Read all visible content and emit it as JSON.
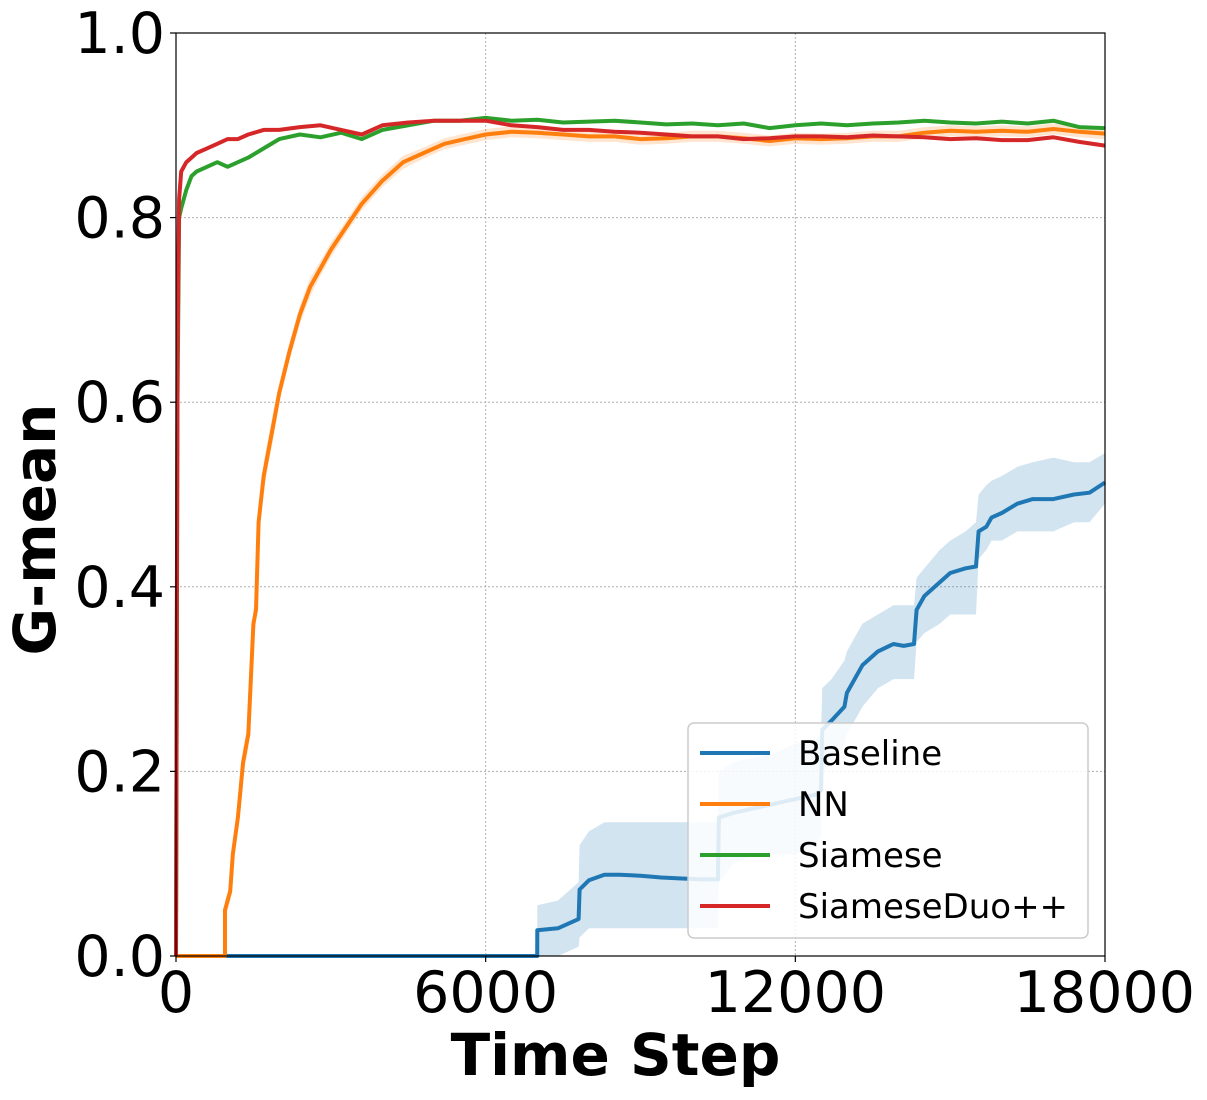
{
  "chart_data": {
    "type": "line",
    "xlabel": "Time Step",
    "ylabel": "G-mean",
    "xlim": [
      0,
      18000
    ],
    "ylim": [
      0.0,
      1.0
    ],
    "xticks": [
      "0",
      "6000",
      "12000",
      "18000"
    ],
    "yticks": [
      "0.0",
      "0.2",
      "0.4",
      "0.6",
      "0.8",
      "1.0"
    ],
    "grid": true,
    "legend_position": "bottom-right",
    "series": [
      {
        "name": "Baseline",
        "color": "#1f77b4",
        "x": [
          0,
          6999,
          7000,
          7400,
          7800,
          7820,
          8000,
          8300,
          8600,
          9000,
          9400,
          9800,
          10200,
          10500,
          10520,
          10800,
          11200,
          11600,
          12000,
          12400,
          12500,
          12520,
          12700,
          12950,
          13000,
          13300,
          13600,
          13900,
          14100,
          14300,
          14350,
          14500,
          14800,
          15000,
          15300,
          15500,
          15550,
          15700,
          15800,
          16000,
          16300,
          16600,
          17000,
          17400,
          17700,
          18000
        ],
        "y": [
          0.0,
          0.0,
          0.028,
          0.03,
          0.04,
          0.072,
          0.082,
          0.088,
          0.088,
          0.087,
          0.085,
          0.084,
          0.083,
          0.083,
          0.15,
          0.155,
          0.16,
          0.165,
          0.17,
          0.175,
          0.18,
          0.245,
          0.255,
          0.27,
          0.285,
          0.315,
          0.33,
          0.338,
          0.336,
          0.338,
          0.375,
          0.39,
          0.405,
          0.415,
          0.42,
          0.422,
          0.46,
          0.465,
          0.475,
          0.48,
          0.49,
          0.495,
          0.495,
          0.5,
          0.502,
          0.513
        ],
        "band_lower": [
          0.0,
          0.0,
          0.0,
          0.0,
          0.01,
          0.02,
          0.03,
          0.03,
          0.03,
          0.03,
          0.03,
          0.03,
          0.03,
          0.03,
          0.08,
          0.1,
          0.11,
          0.11,
          0.11,
          0.12,
          0.13,
          0.2,
          0.21,
          0.23,
          0.24,
          0.27,
          0.29,
          0.3,
          0.3,
          0.3,
          0.34,
          0.35,
          0.36,
          0.37,
          0.37,
          0.37,
          0.43,
          0.44,
          0.45,
          0.45,
          0.46,
          0.46,
          0.46,
          0.47,
          0.47,
          0.49
        ],
        "band_upper": [
          0.0,
          0.0,
          0.055,
          0.06,
          0.08,
          0.12,
          0.135,
          0.145,
          0.145,
          0.145,
          0.145,
          0.145,
          0.145,
          0.145,
          0.2,
          0.21,
          0.215,
          0.22,
          0.23,
          0.235,
          0.24,
          0.29,
          0.3,
          0.32,
          0.33,
          0.36,
          0.37,
          0.38,
          0.38,
          0.38,
          0.41,
          0.42,
          0.44,
          0.45,
          0.46,
          0.47,
          0.5,
          0.51,
          0.515,
          0.52,
          0.53,
          0.535,
          0.54,
          0.535,
          0.535,
          0.545
        ]
      },
      {
        "name": "NN",
        "color": "#ff7f0e",
        "x": [
          0,
          949,
          950,
          1050,
          1100,
          1200,
          1300,
          1400,
          1500,
          1550,
          1600,
          1700,
          1800,
          1900,
          2000,
          2200,
          2400,
          2600,
          2800,
          3000,
          3300,
          3600,
          4000,
          4400,
          4800,
          5200,
          5600,
          6000,
          6500,
          7000,
          7500,
          8000,
          8500,
          9000,
          9500,
          10000,
          10500,
          11000,
          11500,
          12000,
          12500,
          13000,
          13500,
          14000,
          14500,
          15000,
          15500,
          16000,
          16500,
          17000,
          17500,
          18000
        ],
        "y": [
          0.0,
          0.0,
          0.05,
          0.07,
          0.11,
          0.15,
          0.21,
          0.24,
          0.36,
          0.375,
          0.47,
          0.52,
          0.55,
          0.58,
          0.61,
          0.655,
          0.695,
          0.725,
          0.745,
          0.765,
          0.79,
          0.815,
          0.84,
          0.86,
          0.87,
          0.88,
          0.885,
          0.89,
          0.893,
          0.892,
          0.89,
          0.888,
          0.888,
          0.885,
          0.886,
          0.888,
          0.888,
          0.886,
          0.883,
          0.886,
          0.885,
          0.886,
          0.888,
          0.888,
          0.892,
          0.894,
          0.893,
          0.894,
          0.893,
          0.896,
          0.893,
          0.891
        ],
        "band_lower": [
          0.0,
          0.0,
          0.04,
          0.06,
          0.1,
          0.14,
          0.195,
          0.225,
          0.345,
          0.36,
          0.455,
          0.505,
          0.535,
          0.565,
          0.6,
          0.645,
          0.685,
          0.715,
          0.737,
          0.757,
          0.783,
          0.808,
          0.833,
          0.853,
          0.864,
          0.874,
          0.879,
          0.884,
          0.887,
          0.886,
          0.884,
          0.882,
          0.882,
          0.879,
          0.88,
          0.882,
          0.882,
          0.88,
          0.877,
          0.88,
          0.879,
          0.88,
          0.882,
          0.882,
          0.886,
          0.888,
          0.887,
          0.888,
          0.887,
          0.89,
          0.887,
          0.885
        ],
        "band_upper": [
          0.0,
          0.0,
          0.06,
          0.08,
          0.12,
          0.16,
          0.225,
          0.255,
          0.375,
          0.39,
          0.485,
          0.535,
          0.565,
          0.595,
          0.62,
          0.665,
          0.705,
          0.735,
          0.753,
          0.773,
          0.797,
          0.822,
          0.847,
          0.867,
          0.876,
          0.886,
          0.891,
          0.896,
          0.899,
          0.898,
          0.896,
          0.894,
          0.894,
          0.891,
          0.892,
          0.894,
          0.894,
          0.892,
          0.889,
          0.892,
          0.891,
          0.892,
          0.894,
          0.894,
          0.898,
          0.9,
          0.899,
          0.9,
          0.899,
          0.902,
          0.899,
          0.897
        ]
      },
      {
        "name": "Siamese",
        "color": "#2ca02c",
        "x": [
          0,
          30,
          60,
          100,
          200,
          300,
          400,
          600,
          800,
          1000,
          1200,
          1400,
          1700,
          2000,
          2400,
          2800,
          3200,
          3600,
          4000,
          4500,
          5000,
          5500,
          6000,
          6500,
          7000,
          7500,
          8000,
          8500,
          9000,
          9500,
          10000,
          10500,
          11000,
          11500,
          12000,
          12500,
          13000,
          13500,
          14000,
          14500,
          15000,
          15500,
          16000,
          16500,
          17000,
          17500,
          18000
        ],
        "y": [
          0.0,
          0.6,
          0.8,
          0.81,
          0.83,
          0.845,
          0.85,
          0.855,
          0.86,
          0.855,
          0.86,
          0.865,
          0.875,
          0.885,
          0.89,
          0.887,
          0.892,
          0.885,
          0.895,
          0.9,
          0.905,
          0.905,
          0.908,
          0.905,
          0.906,
          0.903,
          0.904,
          0.905,
          0.903,
          0.901,
          0.902,
          0.9,
          0.902,
          0.897,
          0.9,
          0.902,
          0.9,
          0.902,
          0.903,
          0.905,
          0.903,
          0.902,
          0.904,
          0.902,
          0.905,
          0.898,
          0.897
        ]
      },
      {
        "name": "SiameseDuo++",
        "color": "#d62728",
        "x": [
          0,
          30,
          60,
          100,
          200,
          300,
          400,
          600,
          800,
          1000,
          1200,
          1400,
          1700,
          2000,
          2400,
          2800,
          3200,
          3600,
          4000,
          4500,
          5000,
          5500,
          6000,
          6500,
          7000,
          7500,
          8000,
          8500,
          9000,
          9500,
          10000,
          10500,
          11000,
          11500,
          12000,
          12500,
          13000,
          13500,
          14000,
          14500,
          15000,
          15500,
          16000,
          16500,
          17000,
          17500,
          18000
        ],
        "y": [
          0.0,
          0.65,
          0.82,
          0.85,
          0.86,
          0.865,
          0.87,
          0.875,
          0.88,
          0.885,
          0.885,
          0.89,
          0.895,
          0.895,
          0.898,
          0.9,
          0.895,
          0.89,
          0.9,
          0.903,
          0.905,
          0.905,
          0.905,
          0.9,
          0.898,
          0.895,
          0.895,
          0.893,
          0.892,
          0.89,
          0.888,
          0.888,
          0.885,
          0.886,
          0.888,
          0.888,
          0.887,
          0.889,
          0.888,
          0.887,
          0.885,
          0.886,
          0.884,
          0.884,
          0.887,
          0.882,
          0.878
        ]
      }
    ]
  }
}
